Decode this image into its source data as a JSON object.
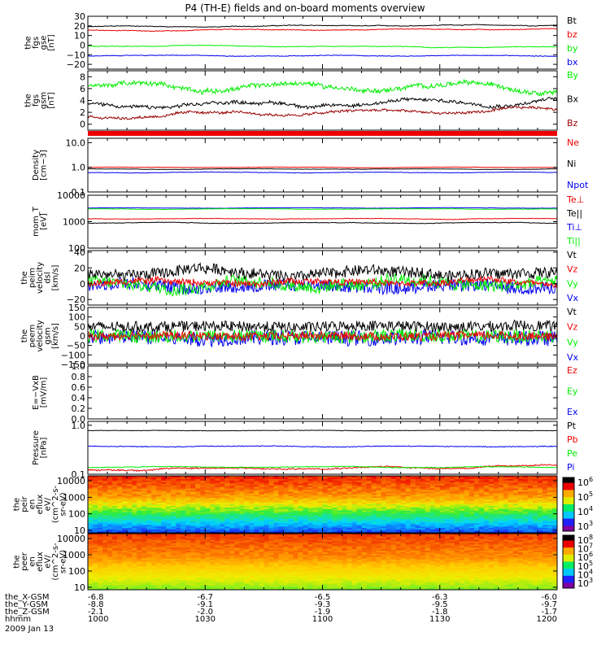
{
  "title": "P4 (TH-E) fields and on-board moments overview",
  "colors": {
    "black": "#000000",
    "red": "#ee0000",
    "green": "#00ee00",
    "blue": "#0000ee",
    "darkred": "#990000"
  },
  "chart_data": [
    {
      "type": "line",
      "panel": "fgs-gse",
      "ylabel": [
        "the",
        "fgs",
        "gse",
        "[nT]"
      ],
      "ylim": [
        -25,
        30
      ],
      "yticks": [
        30,
        20,
        10,
        0,
        -10,
        -20
      ],
      "yticklabels": [
        "30",
        "20",
        "10",
        "0",
        "−10",
        "−20"
      ],
      "legend": [
        {
          "label": "Bt",
          "color": "#000000"
        },
        {
          "label": "bz",
          "color": "#ee0000"
        },
        {
          "label": "by",
          "color": "#00ee00"
        },
        {
          "label": "bx",
          "color": "#0000ee"
        }
      ],
      "series": [
        {
          "name": "Bt",
          "color": "#000000",
          "base": 19,
          "amp": 1.0,
          "noise": 0.3,
          "trend": 2
        },
        {
          "name": "bz",
          "color": "#ee0000",
          "base": 15,
          "amp": 0.8,
          "noise": 0.3,
          "trend": 2
        },
        {
          "name": "by",
          "color": "#00ee00",
          "base": -1,
          "amp": 0.8,
          "noise": 0.3,
          "trend": -1
        },
        {
          "name": "bx",
          "color": "#0000ee",
          "base": -11,
          "amp": 0.6,
          "noise": 0.3,
          "trend": 0
        }
      ]
    },
    {
      "type": "line",
      "panel": "fgs-gsm",
      "ylabel": [
        "the",
        "fgs",
        "gsm",
        "[nT]"
      ],
      "ylim": [
        -1,
        9
      ],
      "yticks": [
        8,
        6,
        4,
        2,
        0
      ],
      "yticklabels": [
        "8",
        "6",
        "4",
        "2",
        "0"
      ],
      "legend": [
        {
          "label": "By",
          "color": "#00ee00"
        },
        {
          "label": "Bx",
          "color": "#000000"
        },
        {
          "label": "Bz",
          "color": "#990000"
        }
      ],
      "series": [
        {
          "name": "By",
          "color": "#00ee00",
          "base": 6.3,
          "amp": 0.8,
          "noise": 0.35,
          "trend": 0
        },
        {
          "name": "Bx",
          "color": "#000000",
          "base": 3.0,
          "amp": 0.7,
          "noise": 0.25,
          "trend": 1
        },
        {
          "name": "Bz",
          "color": "#990000",
          "base": 1.4,
          "amp": 0.5,
          "noise": 0.2,
          "trend": 1
        }
      ]
    },
    {
      "type": "line",
      "panel": "density",
      "ylabel": [
        "Density",
        "[cm−3]"
      ],
      "log": true,
      "ylim": [
        0.1,
        15
      ],
      "yticks": [
        10,
        1,
        0.1
      ],
      "yticklabels": [
        "10.0",
        "1.0",
        "0.1"
      ],
      "legend": [
        {
          "label": "Ne",
          "color": "#ee0000"
        },
        {
          "label": "Ni",
          "color": "#000000"
        },
        {
          "label": "Npot",
          "color": "#0000ee"
        }
      ],
      "series": [
        {
          "name": "Ne",
          "color": "#ee0000",
          "base": 1.0,
          "amp": 0.03,
          "noise": 0.01,
          "trend": 0
        },
        {
          "name": "Ni",
          "color": "#000000",
          "base": 0.85,
          "amp": 0.03,
          "noise": 0.01,
          "trend": 0
        },
        {
          "name": "Npot",
          "color": "#0000ee",
          "base": 0.62,
          "amp": 0.03,
          "noise": 0.01,
          "trend": 0
        }
      ]
    },
    {
      "type": "line",
      "panel": "temperature",
      "ylabel": [
        "mom_T",
        "[eV]"
      ],
      "log": true,
      "ylim": [
        100,
        10000
      ],
      "yticks": [
        10000,
        1000,
        100
      ],
      "yticklabels": [
        "10000",
        "1000",
        "100"
      ],
      "legend": [
        {
          "label": "Te⊥",
          "color": "#ee0000"
        },
        {
          "label": "Te||",
          "color": "#000000"
        },
        {
          "label": "Ti⊥",
          "color": "#0000ee"
        },
        {
          "label": "Ti||",
          "color": "#00ee00"
        }
      ],
      "series": [
        {
          "name": "Ti⊥",
          "color": "#0000ee",
          "base": 3300,
          "amp": 100,
          "noise": 40,
          "trend": 0
        },
        {
          "name": "Ti||",
          "color": "#00ee00",
          "base": 3000,
          "amp": 100,
          "noise": 40,
          "trend": 0
        },
        {
          "name": "Te⊥",
          "color": "#ee0000",
          "base": 1300,
          "amp": 60,
          "noise": 20,
          "trend": 0
        },
        {
          "name": "Te||",
          "color": "#000000",
          "base": 900,
          "amp": 50,
          "noise": 20,
          "trend": 0
        }
      ]
    },
    {
      "type": "line",
      "panel": "velocity-peim",
      "ylabel": [
        "the",
        "peim",
        "velocity",
        "dsl",
        "[km/s]"
      ],
      "ylim": [
        -27,
        42
      ],
      "yticks": [
        40,
        20,
        0,
        -20
      ],
      "yticklabels": [
        "40",
        "20",
        "0",
        "−20"
      ],
      "legend": [
        {
          "label": "Vt",
          "color": "#000000"
        },
        {
          "label": "Vz",
          "color": "#ee0000"
        },
        {
          "label": "Vy",
          "color": "#00ee00"
        },
        {
          "label": "Vx",
          "color": "#0000ee"
        }
      ],
      "series": [
        {
          "name": "Vx",
          "color": "#0000ee",
          "base": -3,
          "amp": 4,
          "noise": 8,
          "trend": 0
        },
        {
          "name": "Vy",
          "color": "#00ee00",
          "base": 0,
          "amp": 6,
          "noise": 8,
          "trend": 0
        },
        {
          "name": "Vt",
          "color": "#000000",
          "base": 14,
          "amp": 5,
          "noise": 7,
          "trend": 0
        },
        {
          "name": "Vz",
          "color": "#ee0000",
          "base": 2,
          "amp": 4,
          "noise": 4,
          "trend": 0
        }
      ]
    },
    {
      "type": "line",
      "panel": "velocity-peem",
      "ylabel": [
        "the",
        "peem",
        "velocity",
        "gsm",
        "[km/s]"
      ],
      "ylim": [
        -150,
        150
      ],
      "yticks": [
        150,
        100,
        50,
        0,
        -50,
        -100,
        -150
      ],
      "yticklabels": [
        "150",
        "100",
        "50",
        "0",
        "−50",
        "−100",
        "−150"
      ],
      "legend": [
        {
          "label": "Vt",
          "color": "#000000"
        },
        {
          "label": "Vz",
          "color": "#ee0000"
        },
        {
          "label": "Vy",
          "color": "#00ee00"
        },
        {
          "label": "Vx",
          "color": "#0000ee"
        }
      ],
      "series": [
        {
          "name": "Vx",
          "color": "#0000ee",
          "base": -10,
          "amp": 5,
          "noise": 40,
          "trend": 0
        },
        {
          "name": "Vy",
          "color": "#00ee00",
          "base": 0,
          "amp": 5,
          "noise": 35,
          "trend": 0
        },
        {
          "name": "Vt",
          "color": "#000000",
          "base": 50,
          "amp": 5,
          "noise": 28,
          "trend": 0
        },
        {
          "name": "Vz",
          "color": "#ee0000",
          "base": 0,
          "amp": 5,
          "noise": 22,
          "trend": 0
        }
      ]
    },
    {
      "type": "line",
      "panel": "efield",
      "ylabel": [
        "E=−VxB",
        "[mV/m]"
      ],
      "ylim": [
        0,
        1
      ],
      "yticks": [
        1.0,
        0.8,
        0.6,
        0.4,
        0.2,
        0.0
      ],
      "yticklabels": [
        "1.0",
        "0.8",
        "0.6",
        "0.4",
        "0.2",
        "0.0"
      ],
      "legend": [
        {
          "label": "Ez",
          "color": "#ee0000"
        },
        {
          "label": "Ey",
          "color": "#00ee00"
        },
        {
          "label": "Ex",
          "color": "#0000ee"
        }
      ],
      "series": []
    },
    {
      "type": "line",
      "panel": "pressure",
      "ylabel": [
        "Pressure",
        "[nPa]"
      ],
      "log": true,
      "ylim": [
        0.1,
        1.2
      ],
      "yticks": [
        1.0,
        0.1
      ],
      "yticklabels": [
        "1.0",
        "0.1"
      ],
      "legend": [
        {
          "label": "Pt",
          "color": "#000000"
        },
        {
          "label": "Pb",
          "color": "#ee0000"
        },
        {
          "label": "Pe",
          "color": "#00ee00"
        },
        {
          "label": "Pi",
          "color": "#0000ee"
        }
      ],
      "series": [
        {
          "name": "Pt",
          "color": "#000000",
          "base": 0.78,
          "amp": 0.01,
          "noise": 0.008,
          "trend": 0
        },
        {
          "name": "Pi",
          "color": "#0000ee",
          "base": 0.37,
          "amp": 0.01,
          "noise": 0.006,
          "trend": 0
        },
        {
          "name": "Pb",
          "color": "#ee0000",
          "base": 0.125,
          "amp": 0.01,
          "noise": 0.004,
          "trend": 0.02
        },
        {
          "name": "Pe",
          "color": "#00ee00",
          "base": 0.14,
          "amp": 0.005,
          "noise": 0.002,
          "trend": 0
        }
      ]
    },
    {
      "type": "heatmap",
      "panel": "peir-en-eflux",
      "ylabel": [
        "the",
        "peir",
        "en",
        "eflux",
        "eV/",
        "(cm^2-s-",
        "sr-eV)"
      ],
      "log": true,
      "ylim": [
        7,
        20000
      ],
      "yticks": [
        10000,
        1000,
        100,
        10
      ],
      "yticklabels": [
        "10000",
        "1000",
        "100",
        "10"
      ],
      "colorbar_ticks": [
        {
          "label": "10",
          "exp": "6"
        },
        {
          "label": "10",
          "exp": "5"
        },
        {
          "label": "10",
          "exp": "4"
        },
        {
          "label": "10",
          "exp": "3"
        }
      ]
    },
    {
      "type": "heatmap",
      "panel": "peer-en-eflux",
      "ylabel": [
        "the",
        "peer",
        "en",
        "eflux",
        "eV/",
        "(cm^2-s-",
        "sr-eV)"
      ],
      "log": true,
      "ylim": [
        7,
        20000
      ],
      "yticks": [
        10000,
        1000,
        100,
        10
      ],
      "yticklabels": [
        "10000",
        "1000",
        "100",
        "10"
      ],
      "colorbar_ticks": [
        {
          "label": "10",
          "exp": "8"
        },
        {
          "label": "10",
          "exp": "7"
        },
        {
          "label": "10",
          "exp": "6"
        },
        {
          "label": "10",
          "exp": "5"
        },
        {
          "label": "10",
          "exp": "4"
        },
        {
          "label": "10",
          "exp": "3"
        }
      ]
    }
  ],
  "time_axis": {
    "rows": [
      {
        "label": "the_X-GSM",
        "values": [
          "-6.8",
          "-6.7",
          "-6.5",
          "-6.3",
          "-6.0"
        ]
      },
      {
        "label": "the_Y-GSM",
        "values": [
          "-8.8",
          "-9.1",
          "-9.3",
          "-9.5",
          "-9.7"
        ]
      },
      {
        "label": "the_Z-GSM",
        "values": [
          "-2.1",
          "-2.0",
          "-1.9",
          "-1.8",
          "-1.7"
        ]
      },
      {
        "label": "hhmm",
        "values": [
          "1000",
          "1030",
          "1100",
          "1130",
          "1200"
        ]
      }
    ],
    "date": "2009 Jan 13"
  }
}
